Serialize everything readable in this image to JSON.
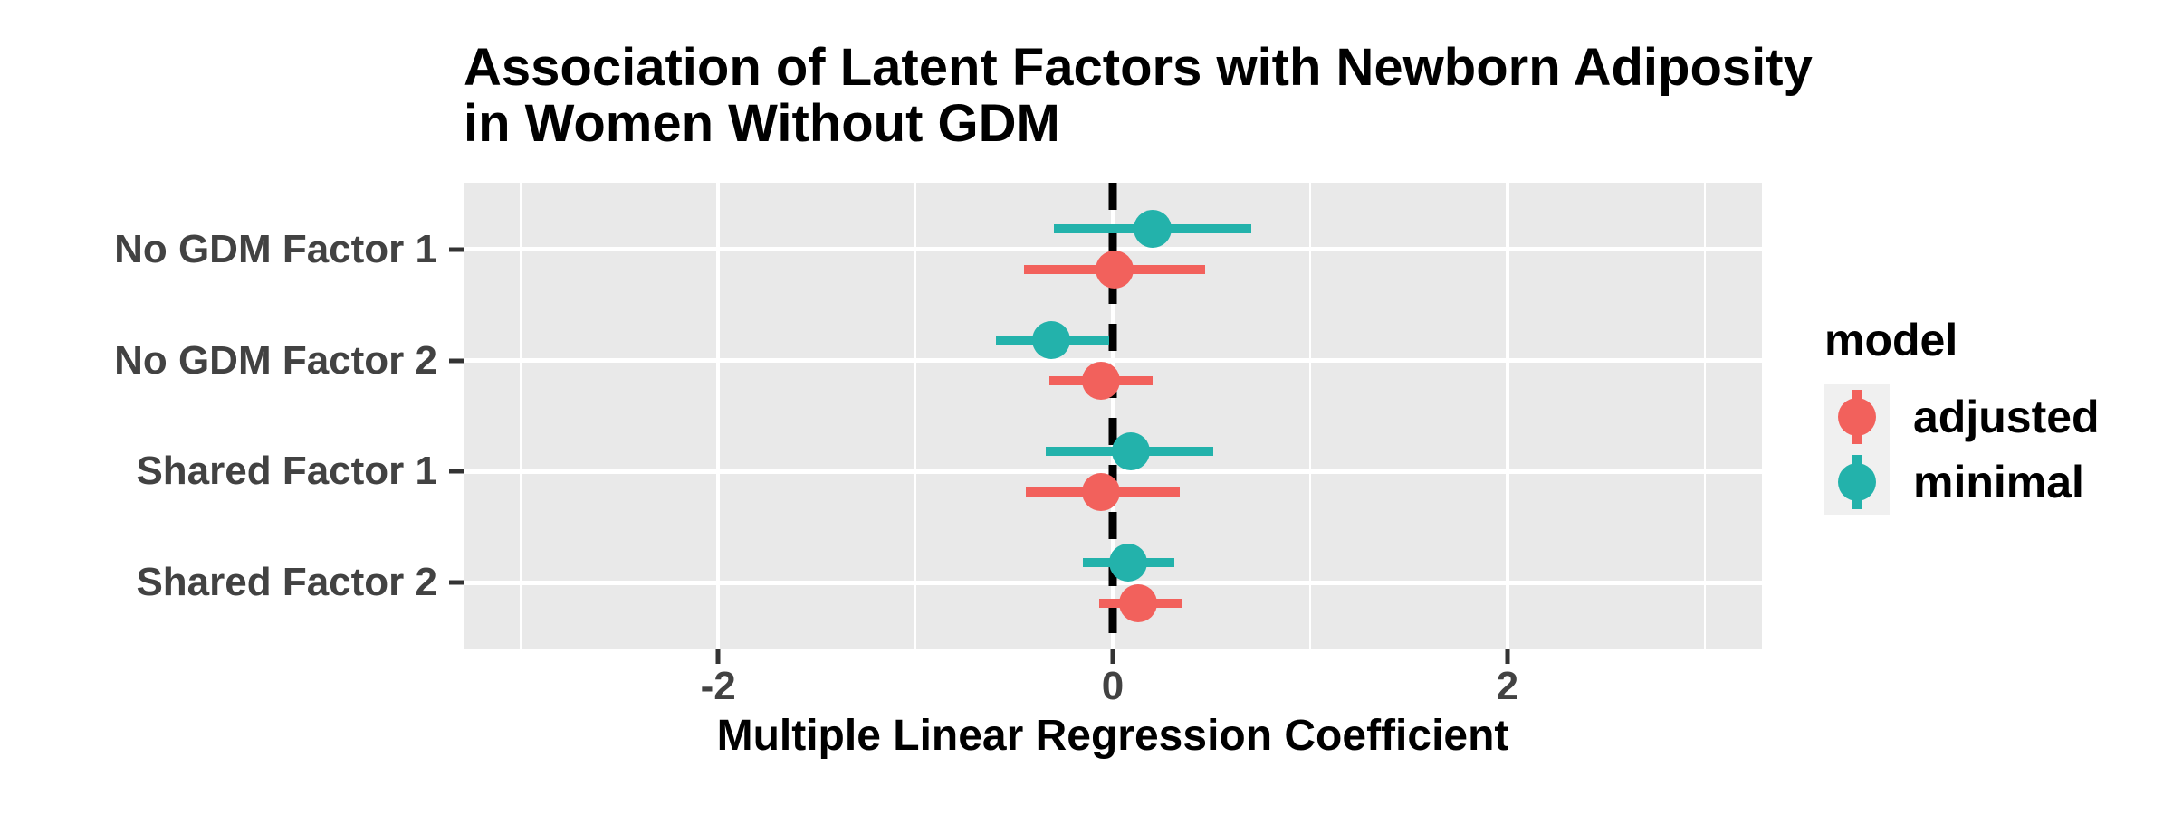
{
  "chart_data": {
    "type": "pointrange",
    "description": "Forest / coefficient plot with horizontal confidence intervals, dodged by model",
    "title": "Association of Latent Factors with Newborn Adiposity\n in Women Without GDM",
    "xlabel": "Multiple Linear Regression Coefficient",
    "legend": {
      "title": "model",
      "position": "right",
      "entries": [
        "adjusted",
        "minimal"
      ]
    },
    "categories": [
      "No GDM Factor 1",
      "No GDM Factor 2",
      "Shared Factor 1",
      "Shared Factor 2"
    ],
    "xlim": [
      -3.29,
      3.29
    ],
    "xticks": [
      -2,
      0,
      2
    ],
    "x_minor_gridlines": [
      -3,
      -1,
      1,
      3
    ],
    "reference_line_x": 0,
    "grid": "on",
    "panel_background": "#E9E9E9",
    "series": [
      {
        "name": "adjusted",
        "color": "#F2615C",
        "points": [
          {
            "category": "No GDM Factor 1",
            "est": 0.01,
            "lo": -0.45,
            "hi": 0.47
          },
          {
            "category": "No GDM Factor 2",
            "est": -0.06,
            "lo": -0.32,
            "hi": 0.2
          },
          {
            "category": "Shared Factor 1",
            "est": -0.06,
            "lo": -0.44,
            "hi": 0.34
          },
          {
            "category": "Shared Factor 2",
            "est": 0.13,
            "lo": -0.07,
            "hi": 0.35
          }
        ]
      },
      {
        "name": "minimal",
        "color": "#23B2AB",
        "points": [
          {
            "category": "No GDM Factor 1",
            "est": 0.2,
            "lo": -0.3,
            "hi": 0.7
          },
          {
            "category": "No GDM Factor 2",
            "est": -0.31,
            "lo": -0.59,
            "hi": -0.02
          },
          {
            "category": "Shared Factor 1",
            "est": 0.09,
            "lo": -0.34,
            "hi": 0.51
          },
          {
            "category": "Shared Factor 2",
            "est": 0.08,
            "lo": -0.15,
            "hi": 0.31
          }
        ]
      }
    ],
    "text_colors": {
      "axis_text": "#424242",
      "titles": "#000000",
      "tick_marks": "#333333"
    }
  }
}
